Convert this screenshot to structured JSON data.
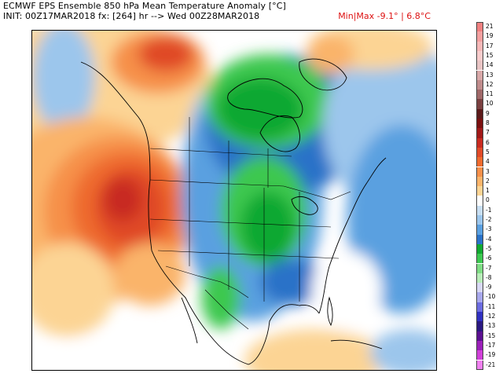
{
  "header": {
    "title": "ECMWF EPS Ensemble 850 hPa Mean Temperature Anomaly [°C]",
    "init": "INIT: 00Z17MAR2018  fx: [264] hr --> Wed 00Z28MAR2018",
    "minmax": "Min|Max -9.1° | 6.8°C"
  },
  "legend": {
    "items": [
      {
        "label": "21",
        "color": "#f08080"
      },
      {
        "label": "19",
        "color": "#f4a0a0"
      },
      {
        "label": "17",
        "color": "#f6b8b8"
      },
      {
        "label": "15",
        "color": "#f8cccc"
      },
      {
        "label": "14",
        "color": "#e8c4c4"
      },
      {
        "label": "13",
        "color": "#d8a8a8"
      },
      {
        "label": "12",
        "color": "#c08c8c"
      },
      {
        "label": "11",
        "color": "#a06868"
      },
      {
        "label": "10",
        "color": "#7a4040"
      },
      {
        "label": "9",
        "color": "#5c1a1a"
      },
      {
        "label": "8",
        "color": "#7a1010"
      },
      {
        "label": "7",
        "color": "#a01818"
      },
      {
        "label": "6",
        "color": "#c82a20"
      },
      {
        "label": "5",
        "color": "#e04a28"
      },
      {
        "label": "4",
        "color": "#ee6a2e"
      },
      {
        "label": "3",
        "color": "#f6904a"
      },
      {
        "label": "2",
        "color": "#fab46a"
      },
      {
        "label": "1",
        "color": "#fcd494"
      },
      {
        "label": "0",
        "color": "#ffffff"
      },
      {
        "label": "-1",
        "color": "#c8def2"
      },
      {
        "label": "-2",
        "color": "#9cc6ec"
      },
      {
        "label": "-3",
        "color": "#5aa0e0"
      },
      {
        "label": "-4",
        "color": "#2a72c8"
      },
      {
        "label": "-5",
        "color": "#10a830"
      },
      {
        "label": "-6",
        "color": "#3cc850"
      },
      {
        "label": "-7",
        "color": "#7edc84"
      },
      {
        "label": "-8",
        "color": "#b8ecb8"
      },
      {
        "label": "-9",
        "color": "#d8d8f4"
      },
      {
        "label": "-10",
        "color": "#a8a8ec"
      },
      {
        "label": "-11",
        "color": "#6c6ce0"
      },
      {
        "label": "-12",
        "color": "#3030c0"
      },
      {
        "label": "-13",
        "color": "#2a1880"
      },
      {
        "label": "-15",
        "color": "#5a1090"
      },
      {
        "label": "-17",
        "color": "#9a20b8"
      },
      {
        "label": "-19",
        "color": "#d040d8"
      },
      {
        "label": "-21",
        "color": "#f080f0"
      }
    ]
  }
}
